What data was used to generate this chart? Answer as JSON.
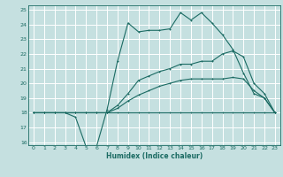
{
  "xlabel": "Humidex (Indice chaleur)",
  "xlim": [
    -0.5,
    23.5
  ],
  "ylim": [
    15.8,
    25.3
  ],
  "xticks": [
    0,
    1,
    2,
    3,
    4,
    5,
    6,
    7,
    8,
    9,
    10,
    11,
    12,
    13,
    14,
    15,
    16,
    17,
    18,
    19,
    20,
    21,
    22,
    23
  ],
  "yticks": [
    16,
    17,
    18,
    19,
    20,
    21,
    22,
    23,
    24,
    25
  ],
  "bg_color": "#c5e0e0",
  "line_color": "#1b6b63",
  "grid_color": "#ffffff",
  "line1_x": [
    0,
    1,
    2,
    3,
    4,
    5,
    6,
    7,
    8,
    9,
    10,
    11,
    12,
    13,
    14,
    15,
    16,
    17,
    18,
    19,
    20,
    21,
    22,
    23
  ],
  "line1_y": [
    18,
    18,
    18,
    18,
    18,
    18,
    18,
    18,
    18,
    18,
    18,
    18,
    18,
    18,
    18,
    18,
    18,
    18,
    18,
    18,
    18,
    18,
    18,
    18
  ],
  "line2_x": [
    0,
    1,
    2,
    3,
    4,
    5,
    6,
    7,
    8,
    9,
    10,
    11,
    12,
    13,
    14,
    15,
    16,
    17,
    18,
    19,
    20,
    21,
    22,
    23
  ],
  "line2_y": [
    18,
    18,
    18,
    18,
    18,
    18,
    18,
    18,
    18.3,
    18.8,
    19.2,
    19.5,
    19.8,
    20.0,
    20.2,
    20.3,
    20.3,
    20.3,
    20.3,
    20.4,
    20.3,
    19.5,
    19.0,
    18.0
  ],
  "line3_x": [
    0,
    1,
    2,
    3,
    4,
    5,
    6,
    7,
    8,
    9,
    10,
    11,
    12,
    13,
    14,
    15,
    16,
    17,
    18,
    19,
    20,
    21,
    22,
    23
  ],
  "line3_y": [
    18,
    18,
    18,
    18,
    18,
    18,
    18,
    18,
    18.5,
    19.3,
    20.2,
    20.5,
    20.8,
    21.0,
    21.3,
    21.3,
    21.5,
    21.5,
    22.0,
    22.2,
    21.8,
    20.0,
    19.3,
    18.0
  ],
  "line4_x": [
    0,
    1,
    2,
    3,
    4,
    5,
    6,
    7,
    8,
    9,
    10,
    11,
    12,
    13,
    14,
    15,
    16,
    17,
    18,
    19,
    20,
    21,
    22,
    23
  ],
  "line4_y": [
    18.0,
    18.0,
    18.0,
    18.0,
    17.7,
    15.7,
    15.7,
    18.2,
    21.5,
    24.1,
    23.5,
    23.6,
    23.6,
    23.7,
    24.8,
    24.3,
    24.8,
    24.1,
    23.3,
    22.3,
    20.7,
    19.3,
    19.0,
    18.0
  ]
}
